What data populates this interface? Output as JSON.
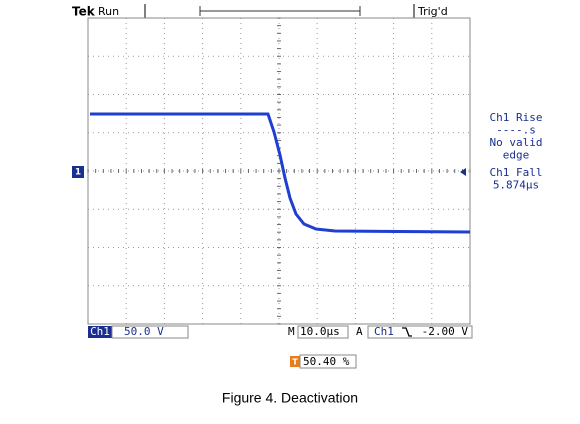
{
  "header": {
    "brand": "Tek",
    "status": "Run",
    "trigger_state": "Trig'd"
  },
  "markers": {
    "trigger": "T",
    "channel": "1"
  },
  "measurements": [
    "Ch1 Rise",
    "----.s",
    "No valid",
    "edge",
    "Ch1 Fall",
    "5.874µs"
  ],
  "status_bar": {
    "channel": "Ch1",
    "scale": "50.0 V",
    "timebase_mode": "M",
    "timebase": "10.0µs",
    "trigger_mode": "A",
    "trigger_source": "Ch1",
    "trigger_level": "-2.00 V"
  },
  "trigger_position": "50.40 %",
  "caption": "Figure 4. Deactivation"
}
